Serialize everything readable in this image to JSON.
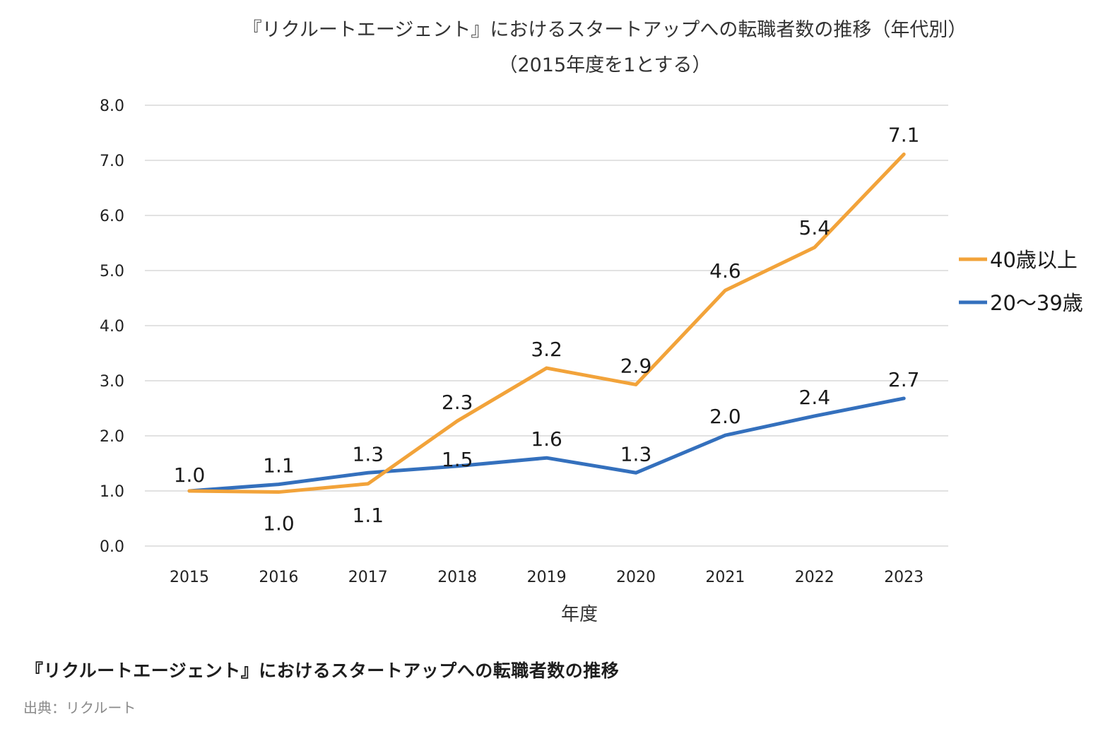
{
  "chart_data": {
    "type": "line",
    "title": "『リクルートエージェント』におけるスタートアップへの転職者数の推移（年代別）",
    "subtitle": "（2015年度を1とする）",
    "xlabel": "年度",
    "ylabel": "",
    "categories": [
      "2015",
      "2016",
      "2017",
      "2018",
      "2019",
      "2020",
      "2021",
      "2022",
      "2023"
    ],
    "ylim": [
      0,
      8
    ],
    "yticks": [
      0,
      1,
      2,
      3,
      4,
      5,
      6,
      7,
      8
    ],
    "ytick_labels": [
      "0.0",
      "1.0",
      "2.0",
      "3.0",
      "4.0",
      "5.0",
      "6.0",
      "7.0",
      "8.0"
    ],
    "grid": true,
    "legend_position": "right",
    "series": [
      {
        "name": "40歳以上",
        "color": "#F2A33A",
        "values": [
          1.0,
          0.98,
          1.13,
          2.27,
          3.23,
          2.93,
          4.64,
          5.42,
          7.11
        ],
        "labels": [
          "1.0",
          "1.0",
          "1.1",
          "2.3",
          "3.2",
          "2.9",
          "4.6",
          "5.4",
          "7.1"
        ]
      },
      {
        "name": "20〜39歳",
        "color": "#3470BD",
        "values": [
          1.0,
          1.12,
          1.33,
          1.45,
          1.6,
          1.33,
          2.01,
          2.36,
          2.68
        ],
        "labels": [
          "1.0",
          "1.1",
          "1.3",
          "1.5",
          "1.6",
          "1.3",
          "2.0",
          "2.4",
          "2.7"
        ]
      }
    ]
  },
  "caption": "『リクルートエージェント』におけるスタートアップへの転職者数の推移",
  "source": "出典：リクルート"
}
